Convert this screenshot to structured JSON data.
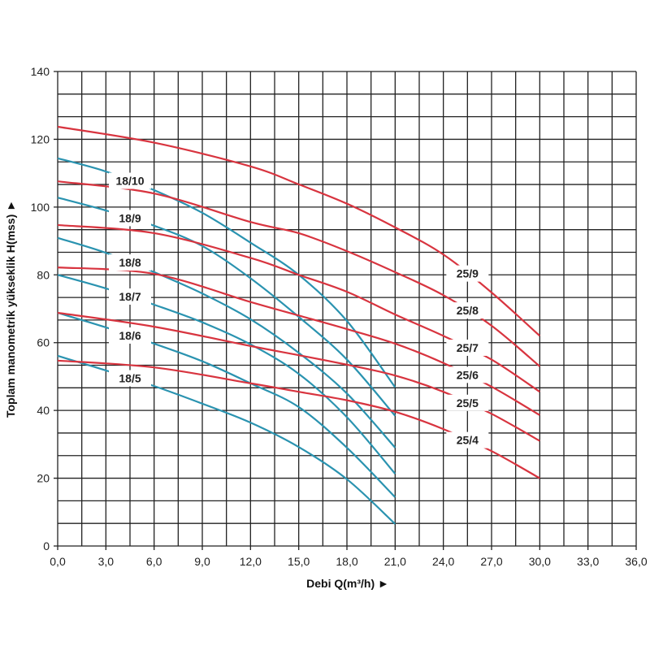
{
  "chart_data": {
    "type": "line",
    "title": "",
    "xlabel": "Debi Q(m³/h) ►",
    "ylabel": "Toplam manometrik yükseklik H(mss) ►",
    "xlim": [
      0,
      36
    ],
    "ylim": [
      0,
      140
    ],
    "x_ticks": [
      "0,0",
      "3,0",
      "6,0",
      "9,0",
      "12,0",
      "15,0",
      "18,0",
      "21,0",
      "24,0",
      "27,0",
      "30,0",
      "33,0",
      "36,0"
    ],
    "y_ticks": [
      "0",
      "20",
      "40",
      "60",
      "80",
      "100",
      "120",
      "140"
    ],
    "grid": true,
    "colors": {
      "series_18": "#2a93b0",
      "series_25": "#d8343f",
      "grid": "#222222"
    },
    "series": [
      {
        "name": "18/10",
        "group": "18",
        "x": [
          0,
          3,
          6,
          9,
          12,
          15,
          18,
          21
        ],
        "y": [
          114.4,
          110.5,
          105,
          98.3,
          89.5,
          80,
          66.4,
          46.8
        ]
      },
      {
        "name": "18/9",
        "group": "18",
        "x": [
          0,
          3,
          6,
          9,
          12,
          15,
          18,
          21
        ],
        "y": [
          102.8,
          99,
          94.5,
          88.5,
          79,
          67.6,
          55,
          38.4
        ]
      },
      {
        "name": "18/8",
        "group": "18",
        "x": [
          0,
          3,
          6,
          9,
          12,
          15,
          18,
          21
        ],
        "y": [
          90.9,
          86.5,
          80.8,
          74.5,
          66.9,
          57,
          45,
          29
        ]
      },
      {
        "name": "18/7",
        "group": "18",
        "x": [
          0,
          3,
          6,
          9,
          12,
          15,
          18,
          21
        ],
        "y": [
          80,
          76,
          71.2,
          66,
          59.5,
          50.8,
          38,
          21.3
        ]
      },
      {
        "name": "18/6",
        "group": "18",
        "x": [
          0,
          3,
          6,
          9,
          12,
          15,
          18,
          21
        ],
        "y": [
          68.8,
          64.5,
          59.7,
          54.5,
          48,
          41,
          29,
          14.4
        ]
      },
      {
        "name": "18/5",
        "group": "18",
        "x": [
          0,
          3,
          6,
          9,
          12,
          15,
          18,
          21
        ],
        "y": [
          56.1,
          51.8,
          47.2,
          42,
          36.4,
          29.2,
          19.7,
          6.5
        ]
      },
      {
        "name": "25/9",
        "group": "25",
        "x": [
          0,
          6,
          12,
          15,
          18,
          21,
          24,
          27,
          30
        ],
        "y": [
          123.7,
          119,
          112,
          106.7,
          101,
          94,
          86,
          74.8,
          62
        ]
      },
      {
        "name": "25/8",
        "group": "25",
        "x": [
          0,
          6,
          12,
          15,
          18,
          21,
          24,
          27,
          30
        ],
        "y": [
          107.6,
          104,
          95.6,
          92.3,
          87,
          80.8,
          74,
          65,
          53
        ]
      },
      {
        "name": "25/7",
        "group": "25",
        "x": [
          0,
          6,
          12,
          15,
          18,
          21,
          24,
          27,
          30
        ],
        "y": [
          94.7,
          92.3,
          85,
          80,
          75,
          68.3,
          62,
          55,
          45.5
        ]
      },
      {
        "name": "25/6",
        "group": "25",
        "x": [
          0,
          6,
          12,
          15,
          18,
          21,
          24,
          27,
          30
        ],
        "y": [
          82.2,
          80.3,
          72,
          68,
          64,
          59.7,
          54,
          47,
          38.6
        ]
      },
      {
        "name": "25/5",
        "group": "25",
        "x": [
          0,
          6,
          12,
          15,
          18,
          21,
          24,
          27,
          30
        ],
        "y": [
          68.8,
          64.7,
          59,
          56.3,
          53.5,
          50.3,
          45.5,
          39,
          31
        ]
      },
      {
        "name": "25/4",
        "group": "25",
        "x": [
          0,
          6,
          12,
          15,
          18,
          21,
          24,
          27,
          30
        ],
        "y": [
          54.7,
          52.7,
          48,
          45.5,
          43,
          39.6,
          34.5,
          28,
          20
        ]
      }
    ]
  }
}
